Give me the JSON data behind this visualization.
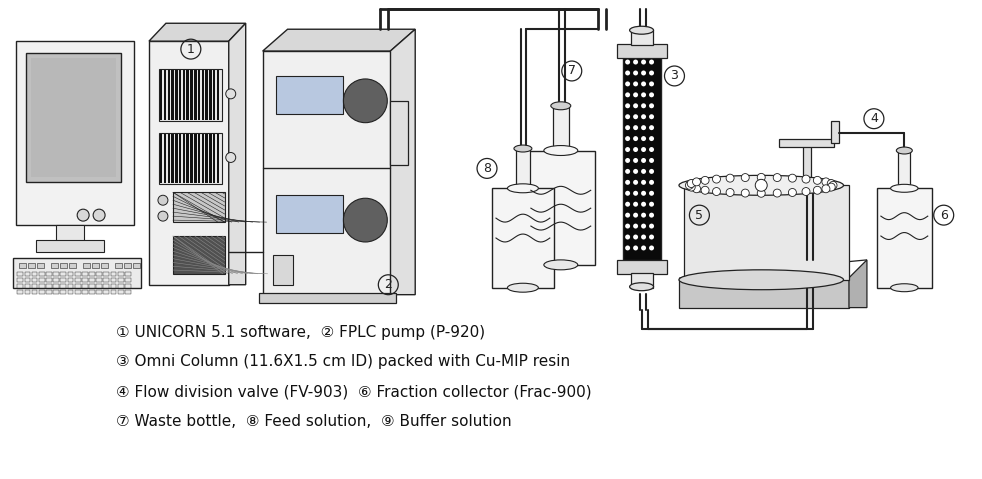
{
  "background_color": "#ffffff",
  "line_color": "#222222",
  "text_color": "#111111",
  "legend_lines": [
    "① UNICORN 5.1 software,  ② FPLC pump (P-920)",
    "③ Omni Column (11.6X1.5 cm ID) packed with Cu-MIP resin",
    "④ Flow division valve (FV-903)  ⑥ Fraction collector (Frac-900)",
    "⑦ Waste bottle,  ⑧ Feed solution,  ⑨ Buffer solution"
  ],
  "legend_fontsize": 11.0
}
